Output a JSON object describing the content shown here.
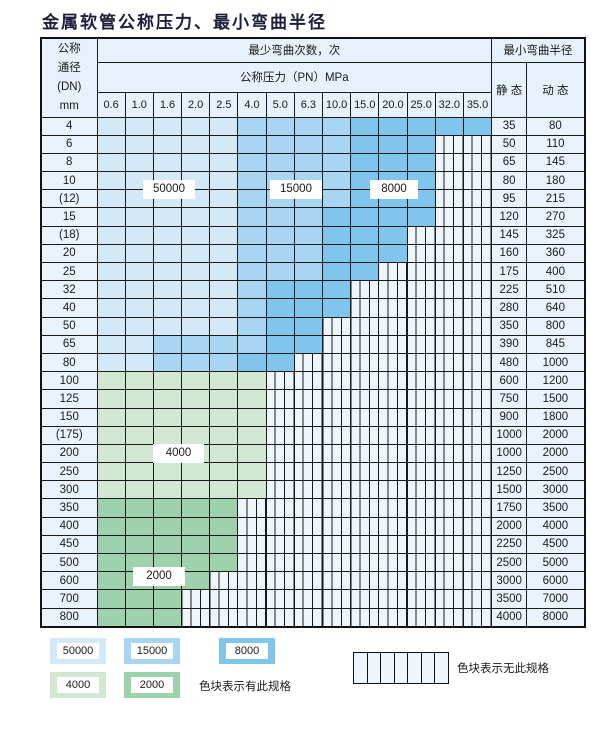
{
  "title": "金属软管公称压力、最小弯曲半径",
  "header": {
    "dn_label_lines": [
      "公称",
      "通径",
      "(DN)",
      "mm"
    ],
    "bend_count_label": "最少弯曲次数，次",
    "pressure_label": "公称压力（PN）MPa",
    "radius_label": "最小弯曲半径",
    "static_label": "静 态",
    "dynamic_label": "动 态",
    "pressures": [
      "0.6",
      "1.0",
      "1.6",
      "2.0",
      "2.5",
      "4.0",
      "5.0",
      "6.3",
      "10.0",
      "15.0",
      "20.0",
      "25.0",
      "32.0",
      "35.0"
    ]
  },
  "colors": {
    "50000": "#d3e9f8",
    "15000": "#a8d5f1",
    "8000": "#7fc5ec",
    "4000": "#d2e8d3",
    "2000": "#9ed2ac",
    "none": "#eef5fb"
  },
  "rows": [
    {
      "dn": "4",
      "static": "35",
      "dynamic": "80",
      "cells": [
        50000,
        50000,
        50000,
        50000,
        50000,
        15000,
        15000,
        15000,
        15000,
        8000,
        8000,
        8000,
        8000,
        8000
      ]
    },
    {
      "dn": "6",
      "static": "50",
      "dynamic": "110",
      "cells": [
        50000,
        50000,
        50000,
        50000,
        50000,
        15000,
        15000,
        15000,
        15000,
        8000,
        8000,
        8000,
        0,
        0
      ]
    },
    {
      "dn": "8",
      "static": "65",
      "dynamic": "145",
      "cells": [
        50000,
        50000,
        50000,
        50000,
        50000,
        15000,
        15000,
        15000,
        15000,
        8000,
        8000,
        8000,
        0,
        0
      ]
    },
    {
      "dn": "10",
      "static": "80",
      "dynamic": "180",
      "cells": [
        50000,
        50000,
        50000,
        50000,
        50000,
        15000,
        15000,
        15000,
        15000,
        8000,
        8000,
        8000,
        0,
        0
      ]
    },
    {
      "dn": "(12)",
      "static": "95",
      "dynamic": "215",
      "cells": [
        50000,
        50000,
        50000,
        50000,
        50000,
        15000,
        15000,
        15000,
        15000,
        8000,
        8000,
        8000,
        0,
        0
      ]
    },
    {
      "dn": "15",
      "static": "120",
      "dynamic": "270",
      "cells": [
        50000,
        50000,
        50000,
        50000,
        50000,
        15000,
        15000,
        15000,
        8000,
        8000,
        8000,
        8000,
        0,
        0
      ]
    },
    {
      "dn": "(18)",
      "static": "145",
      "dynamic": "325",
      "cells": [
        50000,
        50000,
        50000,
        50000,
        50000,
        15000,
        15000,
        15000,
        8000,
        8000,
        8000,
        0,
        0,
        0
      ]
    },
    {
      "dn": "20",
      "static": "160",
      "dynamic": "360",
      "cells": [
        50000,
        50000,
        50000,
        50000,
        50000,
        15000,
        15000,
        15000,
        8000,
        8000,
        8000,
        0,
        0,
        0
      ]
    },
    {
      "dn": "25",
      "static": "175",
      "dynamic": "400",
      "cells": [
        50000,
        50000,
        50000,
        50000,
        50000,
        15000,
        15000,
        15000,
        8000,
        8000,
        0,
        0,
        0,
        0
      ]
    },
    {
      "dn": "32",
      "static": "225",
      "dynamic": "510",
      "cells": [
        50000,
        50000,
        50000,
        50000,
        50000,
        15000,
        8000,
        8000,
        8000,
        0,
        0,
        0,
        0,
        0
      ]
    },
    {
      "dn": "40",
      "static": "280",
      "dynamic": "640",
      "cells": [
        50000,
        50000,
        50000,
        50000,
        50000,
        15000,
        8000,
        8000,
        8000,
        0,
        0,
        0,
        0,
        0
      ]
    },
    {
      "dn": "50",
      "static": "350",
      "dynamic": "800",
      "cells": [
        50000,
        50000,
        50000,
        50000,
        50000,
        15000,
        8000,
        8000,
        0,
        0,
        0,
        0,
        0,
        0
      ]
    },
    {
      "dn": "65",
      "static": "390",
      "dynamic": "845",
      "cells": [
        50000,
        50000,
        15000,
        15000,
        15000,
        15000,
        8000,
        8000,
        0,
        0,
        0,
        0,
        0,
        0
      ]
    },
    {
      "dn": "80",
      "static": "480",
      "dynamic": "1000",
      "cells": [
        50000,
        50000,
        15000,
        15000,
        15000,
        8000,
        8000,
        0,
        0,
        0,
        0,
        0,
        0,
        0
      ]
    },
    {
      "dn": "100",
      "static": "600",
      "dynamic": "1200",
      "cells": [
        4000,
        4000,
        4000,
        4000,
        4000,
        4000,
        0,
        0,
        0,
        0,
        0,
        0,
        0,
        0
      ]
    },
    {
      "dn": "125",
      "static": "750",
      "dynamic": "1500",
      "cells": [
        4000,
        4000,
        4000,
        4000,
        4000,
        4000,
        0,
        0,
        0,
        0,
        0,
        0,
        0,
        0
      ]
    },
    {
      "dn": "150",
      "static": "900",
      "dynamic": "1800",
      "cells": [
        4000,
        4000,
        4000,
        4000,
        4000,
        4000,
        0,
        0,
        0,
        0,
        0,
        0,
        0,
        0
      ]
    },
    {
      "dn": "(175)",
      "static": "1000",
      "dynamic": "2000",
      "cells": [
        4000,
        4000,
        4000,
        4000,
        4000,
        4000,
        0,
        0,
        0,
        0,
        0,
        0,
        0,
        0
      ]
    },
    {
      "dn": "200",
      "static": "1000",
      "dynamic": "2000",
      "cells": [
        4000,
        4000,
        4000,
        4000,
        4000,
        4000,
        0,
        0,
        0,
        0,
        0,
        0,
        0,
        0
      ]
    },
    {
      "dn": "250",
      "static": "1250",
      "dynamic": "2500",
      "cells": [
        4000,
        4000,
        4000,
        4000,
        4000,
        4000,
        0,
        0,
        0,
        0,
        0,
        0,
        0,
        0
      ]
    },
    {
      "dn": "300",
      "static": "1500",
      "dynamic": "3000",
      "cells": [
        4000,
        4000,
        4000,
        4000,
        4000,
        4000,
        0,
        0,
        0,
        0,
        0,
        0,
        0,
        0
      ]
    },
    {
      "dn": "350",
      "static": "1750",
      "dynamic": "3500",
      "cells": [
        2000,
        2000,
        2000,
        2000,
        2000,
        0,
        0,
        0,
        0,
        0,
        0,
        0,
        0,
        0
      ]
    },
    {
      "dn": "400",
      "static": "2000",
      "dynamic": "4000",
      "cells": [
        2000,
        2000,
        2000,
        2000,
        2000,
        0,
        0,
        0,
        0,
        0,
        0,
        0,
        0,
        0
      ]
    },
    {
      "dn": "450",
      "static": "2250",
      "dynamic": "4500",
      "cells": [
        2000,
        2000,
        2000,
        2000,
        2000,
        0,
        0,
        0,
        0,
        0,
        0,
        0,
        0,
        0
      ]
    },
    {
      "dn": "500",
      "static": "2500",
      "dynamic": "5000",
      "cells": [
        2000,
        2000,
        2000,
        2000,
        2000,
        0,
        0,
        0,
        0,
        0,
        0,
        0,
        0,
        0
      ]
    },
    {
      "dn": "600",
      "static": "3000",
      "dynamic": "6000",
      "cells": [
        2000,
        2000,
        2000,
        2000,
        0,
        0,
        0,
        0,
        0,
        0,
        0,
        0,
        0,
        0
      ]
    },
    {
      "dn": "700",
      "static": "3500",
      "dynamic": "7000",
      "cells": [
        2000,
        2000,
        2000,
        0,
        0,
        0,
        0,
        0,
        0,
        0,
        0,
        0,
        0,
        0
      ]
    },
    {
      "dn": "800",
      "static": "4000",
      "dynamic": "8000",
      "cells": [
        2000,
        2000,
        2000,
        0,
        0,
        0,
        0,
        0,
        0,
        0,
        0,
        0,
        0,
        0
      ]
    }
  ],
  "region_labels": {
    "r50000": "50000",
    "r15000": "15000",
    "r8000": "8000",
    "r4000": "4000",
    "r2000": "2000"
  },
  "legend": {
    "items": [
      "50000",
      "15000",
      "8000",
      "4000",
      "2000"
    ],
    "has_spec_text": "色块表示有此规格",
    "no_spec_text": "色块表示无此规格"
  }
}
